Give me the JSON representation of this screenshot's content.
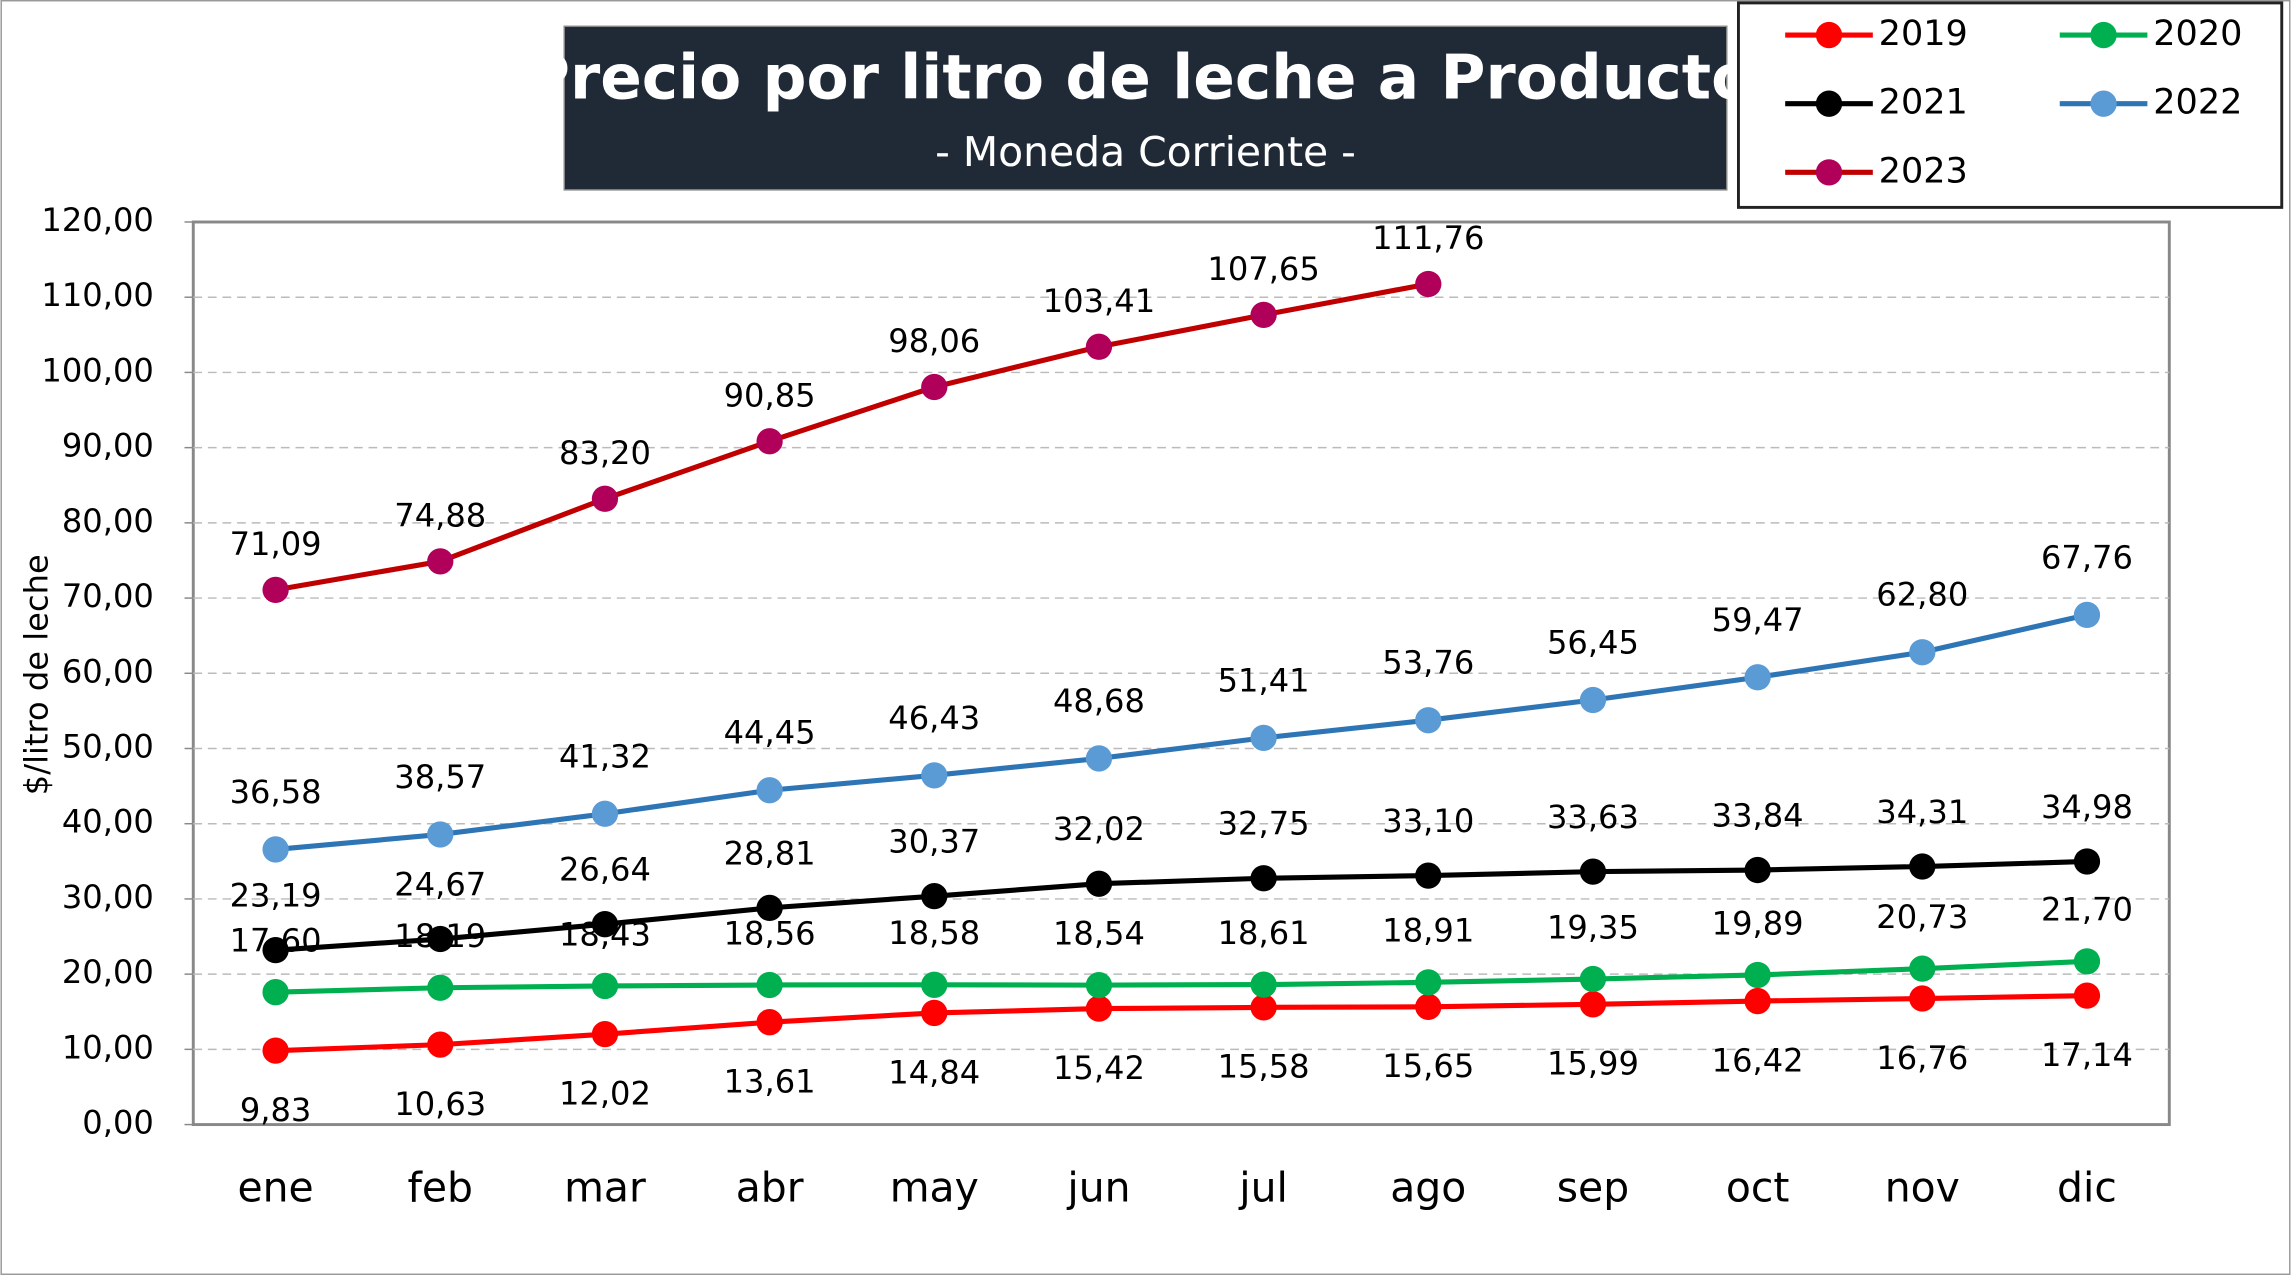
{
  "chart_data": {
    "type": "line",
    "title": "Precio por litro de leche a Productor",
    "subtitle": "- Moneda Corriente -",
    "y_label": "$/litro de leche",
    "categories": [
      "ene",
      "feb",
      "mar",
      "abr",
      "may",
      "jun",
      "jul",
      "ago",
      "sep",
      "oct",
      "nov",
      "dic"
    ],
    "ylim": [
      0,
      120
    ],
    "yticks": [
      {
        "value": 0,
        "label": "0,00"
      },
      {
        "value": 10,
        "label": "10,00"
      },
      {
        "value": 20,
        "label": "20,00"
      },
      {
        "value": 30,
        "label": "30,00"
      },
      {
        "value": 40,
        "label": "40,00"
      },
      {
        "value": 50,
        "label": "50,00"
      },
      {
        "value": 60,
        "label": "60,00"
      },
      {
        "value": 70,
        "label": "70,00"
      },
      {
        "value": 80,
        "label": "80,00"
      },
      {
        "value": 90,
        "label": "90,00"
      },
      {
        "value": 100,
        "label": "100,00"
      },
      {
        "value": 110,
        "label": "110,00"
      },
      {
        "value": 120,
        "label": "120,00"
      }
    ],
    "grid": true,
    "legend": "top-right",
    "series": [
      {
        "name": "2019",
        "color": "#ff0000",
        "line_color": "#ff0000",
        "values": [
          9.83,
          10.63,
          12.02,
          13.61,
          14.84,
          15.42,
          15.58,
          15.65,
          15.99,
          16.42,
          16.76,
          17.14
        ],
        "value_labels": [
          "9,83",
          "10,63",
          "12,02",
          "13,61",
          "14,84",
          "15,42",
          "15,58",
          "15,65",
          "15,99",
          "16,42",
          "16,76",
          "17,14"
        ]
      },
      {
        "name": "2020",
        "color": "#00b050",
        "line_color": "#00b050",
        "values": [
          17.6,
          18.19,
          18.43,
          18.56,
          18.58,
          18.54,
          18.61,
          18.91,
          19.35,
          19.89,
          20.73,
          21.7
        ],
        "value_labels": [
          "17,60",
          "18,19",
          "18,43",
          "18,56",
          "18,58",
          "18,54",
          "18,61",
          "18,91",
          "19,35",
          "19,89",
          "20,73",
          "21,70"
        ]
      },
      {
        "name": "2021",
        "color": "#000000",
        "line_color": "#000000",
        "values": [
          23.19,
          24.67,
          26.64,
          28.81,
          30.37,
          32.02,
          32.75,
          33.1,
          33.63,
          33.84,
          34.31,
          34.98
        ],
        "value_labels": [
          "23,19",
          "24,67",
          "26,64",
          "28,81",
          "30,37",
          "32,02",
          "32,75",
          "33,10",
          "33,63",
          "33,84",
          "34,31",
          "34,98"
        ]
      },
      {
        "name": "2022",
        "color": "#5b9bd5",
        "line_color": "#2e75b6",
        "values": [
          36.58,
          38.57,
          41.32,
          44.45,
          46.43,
          48.68,
          51.41,
          53.76,
          56.45,
          59.47,
          62.8,
          67.76
        ],
        "value_labels": [
          "36,58",
          "38,57",
          "41,32",
          "44,45",
          "46,43",
          "48,68",
          "51,41",
          "53,76",
          "56,45",
          "59,47",
          "62,80",
          "67,76"
        ]
      },
      {
        "name": "2023",
        "color": "#b0005a",
        "line_color": "#c00000",
        "values": [
          71.09,
          74.88,
          83.2,
          90.85,
          98.06,
          103.41,
          107.65,
          111.76,
          null,
          null,
          null,
          null
        ],
        "value_labels": [
          "71,09",
          "74,88",
          "83,20",
          "90,85",
          "98,06",
          "103,41",
          "107,65",
          "111,76",
          null,
          null,
          null,
          null
        ]
      }
    ]
  }
}
